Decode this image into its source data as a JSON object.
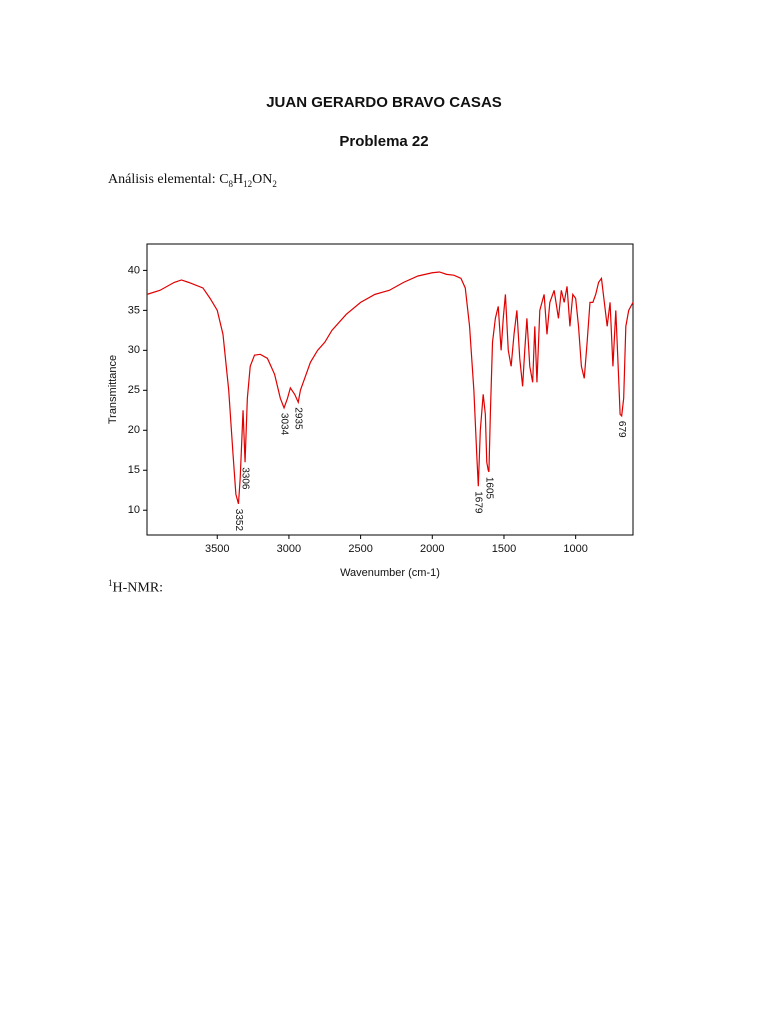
{
  "header": {
    "author": "JUAN GERARDO BRAVO CASAS",
    "title": "Problema 22"
  },
  "analysis": {
    "label": "Análisis elemental:",
    "formula_parts": [
      "C",
      "8",
      "H",
      "12",
      "ON",
      "2"
    ]
  },
  "nmr": {
    "parts": [
      "1",
      "H-NMR:"
    ]
  },
  "chart_data": {
    "type": "line",
    "x_label": "Wavenumber (cm-1)",
    "y_label": "Transmittance",
    "color": "#e00000",
    "xlim": [
      3990,
      600
    ],
    "ylim": [
      6.9,
      43.3
    ],
    "xticks": [
      3500,
      3000,
      2500,
      2000,
      1500,
      1000
    ],
    "yticks": [
      10,
      15,
      20,
      25,
      30,
      35,
      40
    ],
    "x": [
      3990,
      3900,
      3800,
      3750,
      3700,
      3600,
      3550,
      3500,
      3460,
      3420,
      3390,
      3370,
      3352,
      3340,
      3320,
      3306,
      3290,
      3270,
      3240,
      3200,
      3150,
      3100,
      3060,
      3034,
      3010,
      2990,
      2960,
      2935,
      2920,
      2880,
      2850,
      2800,
      2750,
      2700,
      2600,
      2500,
      2400,
      2300,
      2200,
      2100,
      2000,
      1950,
      1900,
      1850,
      1800,
      1770,
      1740,
      1710,
      1690,
      1679,
      1665,
      1645,
      1630,
      1620,
      1610,
      1605,
      1595,
      1580,
      1560,
      1540,
      1520,
      1505,
      1490,
      1470,
      1450,
      1430,
      1410,
      1390,
      1370,
      1355,
      1340,
      1320,
      1300,
      1285,
      1270,
      1250,
      1220,
      1200,
      1180,
      1150,
      1120,
      1100,
      1080,
      1060,
      1040,
      1020,
      1000,
      980,
      960,
      940,
      920,
      900,
      880,
      860,
      840,
      820,
      800,
      780,
      760,
      740,
      720,
      700,
      690,
      679,
      665,
      650,
      630,
      600
    ],
    "values": [
      37.0,
      37.5,
      38.5,
      38.8,
      38.5,
      37.8,
      36.5,
      35,
      32,
      25,
      17,
      12,
      10.8,
      14,
      22.5,
      16,
      24,
      28,
      29.4,
      29.5,
      29,
      27,
      24,
      22.8,
      24,
      25.3,
      24.5,
      23.5,
      25,
      27,
      28.5,
      30,
      31,
      32.5,
      34.5,
      36,
      37,
      37.5,
      38.5,
      39.3,
      39.7,
      39.8,
      39.5,
      39.4,
      39,
      37.8,
      33,
      25,
      17,
      13,
      20,
      24.5,
      22,
      16,
      15,
      14.8,
      22,
      31,
      34,
      35.5,
      30,
      34,
      37,
      30,
      28,
      32,
      35,
      29,
      25.5,
      30,
      34,
      28,
      26,
      33,
      26,
      35,
      37,
      32,
      36,
      37.5,
      34,
      37.5,
      36,
      38,
      33,
      37,
      36.5,
      33,
      28,
      26.5,
      31,
      36,
      36,
      37,
      38.5,
      39,
      36,
      33,
      36,
      28,
      35,
      26.5,
      22,
      21.8,
      24,
      33,
      35,
      36
    ],
    "peak_labels": [
      3352,
      3306,
      3034,
      2935,
      1679,
      1605,
      679
    ]
  }
}
